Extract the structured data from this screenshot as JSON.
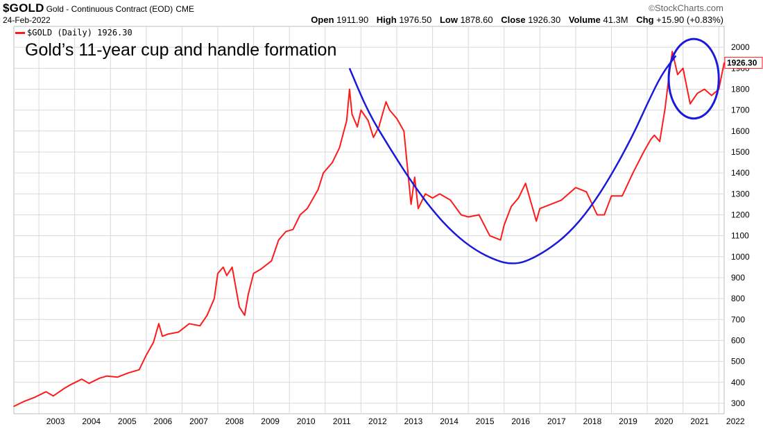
{
  "header": {
    "symbol": "$GOLD",
    "description": "Gold - Continuous Contract (EOD)",
    "exchange": "CME",
    "date": "24-Feb-2022",
    "brand": "StockCharts.com",
    "brand_prefix": "©",
    "ohlc": {
      "open_label": "Open",
      "open": "1911.90",
      "high_label": "High",
      "high": "1976.50",
      "low_label": "Low",
      "low": "1878.60",
      "close_label": "Close",
      "close": "1926.30",
      "volume_label": "Volume",
      "volume": "41.3M",
      "chg_label": "Chg",
      "chg": "+15.90 (+0.83%)"
    }
  },
  "legend": {
    "label": "$GOLD (Daily) 1926.30"
  },
  "annotation": "Gold’s 11-year cup and handle formation",
  "colors": {
    "price_line": "#ff1a1a",
    "cup_curve": "#1a1adb",
    "grid": "#d9d9d9",
    "last_value_border": "#ff1a1a"
  },
  "chart_data": {
    "type": "line",
    "title": "Gold’s 11-year cup and handle formation",
    "xlabel": "",
    "ylabel": "",
    "x_range": [
      2002.3,
      2022.15
    ],
    "ylim": [
      250,
      2100
    ],
    "grid": true,
    "y_ticks": [
      300,
      400,
      500,
      600,
      700,
      800,
      900,
      1000,
      1100,
      1200,
      1300,
      1400,
      1500,
      1600,
      1700,
      1800,
      1900,
      2000
    ],
    "y_tick_labels": [
      "300",
      "400",
      "500",
      "600",
      "700",
      "800",
      "900",
      "1000",
      "1100",
      "1200",
      "1300",
      "1400",
      "1500",
      "1600",
      "1700",
      "1800",
      "1900",
      "2000"
    ],
    "x_ticks": [
      2003,
      2004,
      2005,
      2006,
      2007,
      2008,
      2009,
      2010,
      2011,
      2012,
      2013,
      2014,
      2015,
      2016,
      2017,
      2018,
      2019,
      2020,
      2021,
      2022
    ],
    "x_tick_labels": [
      "2003",
      "2004",
      "2005",
      "2006",
      "2007",
      "2008",
      "2009",
      "2010",
      "2011",
      "2012",
      "2013",
      "2014",
      "2015",
      "2016",
      "2017",
      "2018",
      "2019",
      "2020",
      "2021",
      "2022"
    ],
    "last_value_label": "1926.30",
    "series": [
      {
        "name": "$GOLD (Daily)",
        "x": [
          2002.3,
          2002.6,
          2002.9,
          2003.2,
          2003.4,
          2003.7,
          2003.9,
          2004.2,
          2004.4,
          2004.7,
          2004.9,
          2005.2,
          2005.5,
          2005.8,
          2006.0,
          2006.2,
          2006.35,
          2006.45,
          2006.6,
          2006.9,
          2007.2,
          2007.5,
          2007.7,
          2007.9,
          2008.0,
          2008.15,
          2008.25,
          2008.4,
          2008.6,
          2008.75,
          2008.85,
          2009.0,
          2009.2,
          2009.5,
          2009.7,
          2009.9,
          2010.1,
          2010.3,
          2010.5,
          2010.8,
          2010.95,
          2011.2,
          2011.4,
          2011.6,
          2011.68,
          2011.75,
          2011.9,
          2012.0,
          2012.2,
          2012.35,
          2012.5,
          2012.7,
          2012.8,
          2013.0,
          2013.2,
          2013.4,
          2013.5,
          2013.6,
          2013.8,
          2014.0,
          2014.2,
          2014.5,
          2014.8,
          2015.0,
          2015.3,
          2015.6,
          2015.9,
          2016.0,
          2016.2,
          2016.4,
          2016.6,
          2016.9,
          2017.0,
          2017.3,
          2017.6,
          2017.8,
          2018.0,
          2018.3,
          2018.6,
          2018.8,
          2019.0,
          2019.3,
          2019.6,
          2019.9,
          2020.1,
          2020.2,
          2020.35,
          2020.5,
          2020.6,
          2020.7,
          2020.85,
          2021.0,
          2021.2,
          2021.4,
          2021.6,
          2021.8,
          2022.0,
          2022.15
        ],
        "values": [
          285,
          310,
          330,
          355,
          335,
          370,
          390,
          415,
          395,
          420,
          430,
          425,
          445,
          460,
          530,
          590,
          680,
          620,
          630,
          640,
          680,
          670,
          720,
          800,
          920,
          950,
          910,
          950,
          760,
          720,
          820,
          920,
          940,
          980,
          1080,
          1120,
          1130,
          1200,
          1230,
          1320,
          1400,
          1450,
          1520,
          1650,
          1800,
          1680,
          1620,
          1700,
          1650,
          1570,
          1620,
          1740,
          1700,
          1660,
          1600,
          1250,
          1380,
          1230,
          1300,
          1280,
          1300,
          1270,
          1200,
          1190,
          1200,
          1100,
          1080,
          1150,
          1240,
          1280,
          1350,
          1170,
          1230,
          1250,
          1270,
          1300,
          1330,
          1310,
          1200,
          1200,
          1290,
          1290,
          1400,
          1500,
          1560,
          1580,
          1550,
          1710,
          1850,
          1980,
          1870,
          1900,
          1730,
          1780,
          1800,
          1770,
          1800,
          1926.3
        ]
      }
    ],
    "cup_curve": {
      "name": "cup and handle trendline",
      "x": [
        2011.68,
        2012.2,
        2012.8,
        2013.4,
        2014.0,
        2014.6,
        2015.2,
        2015.8,
        2016.2,
        2016.6,
        2017.2,
        2017.8,
        2018.4,
        2019.0,
        2019.6,
        2020.0,
        2020.4,
        2020.8
      ],
      "values": [
        1900,
        1690,
        1520,
        1360,
        1220,
        1110,
        1030,
        980,
        965,
        975,
        1030,
        1110,
        1230,
        1390,
        1580,
        1730,
        1870,
        1960
      ]
    },
    "handle_ellipse": {
      "center_x": 2021.3,
      "center_y": 1850,
      "radius_years": 0.7,
      "radius_price": 190
    }
  }
}
